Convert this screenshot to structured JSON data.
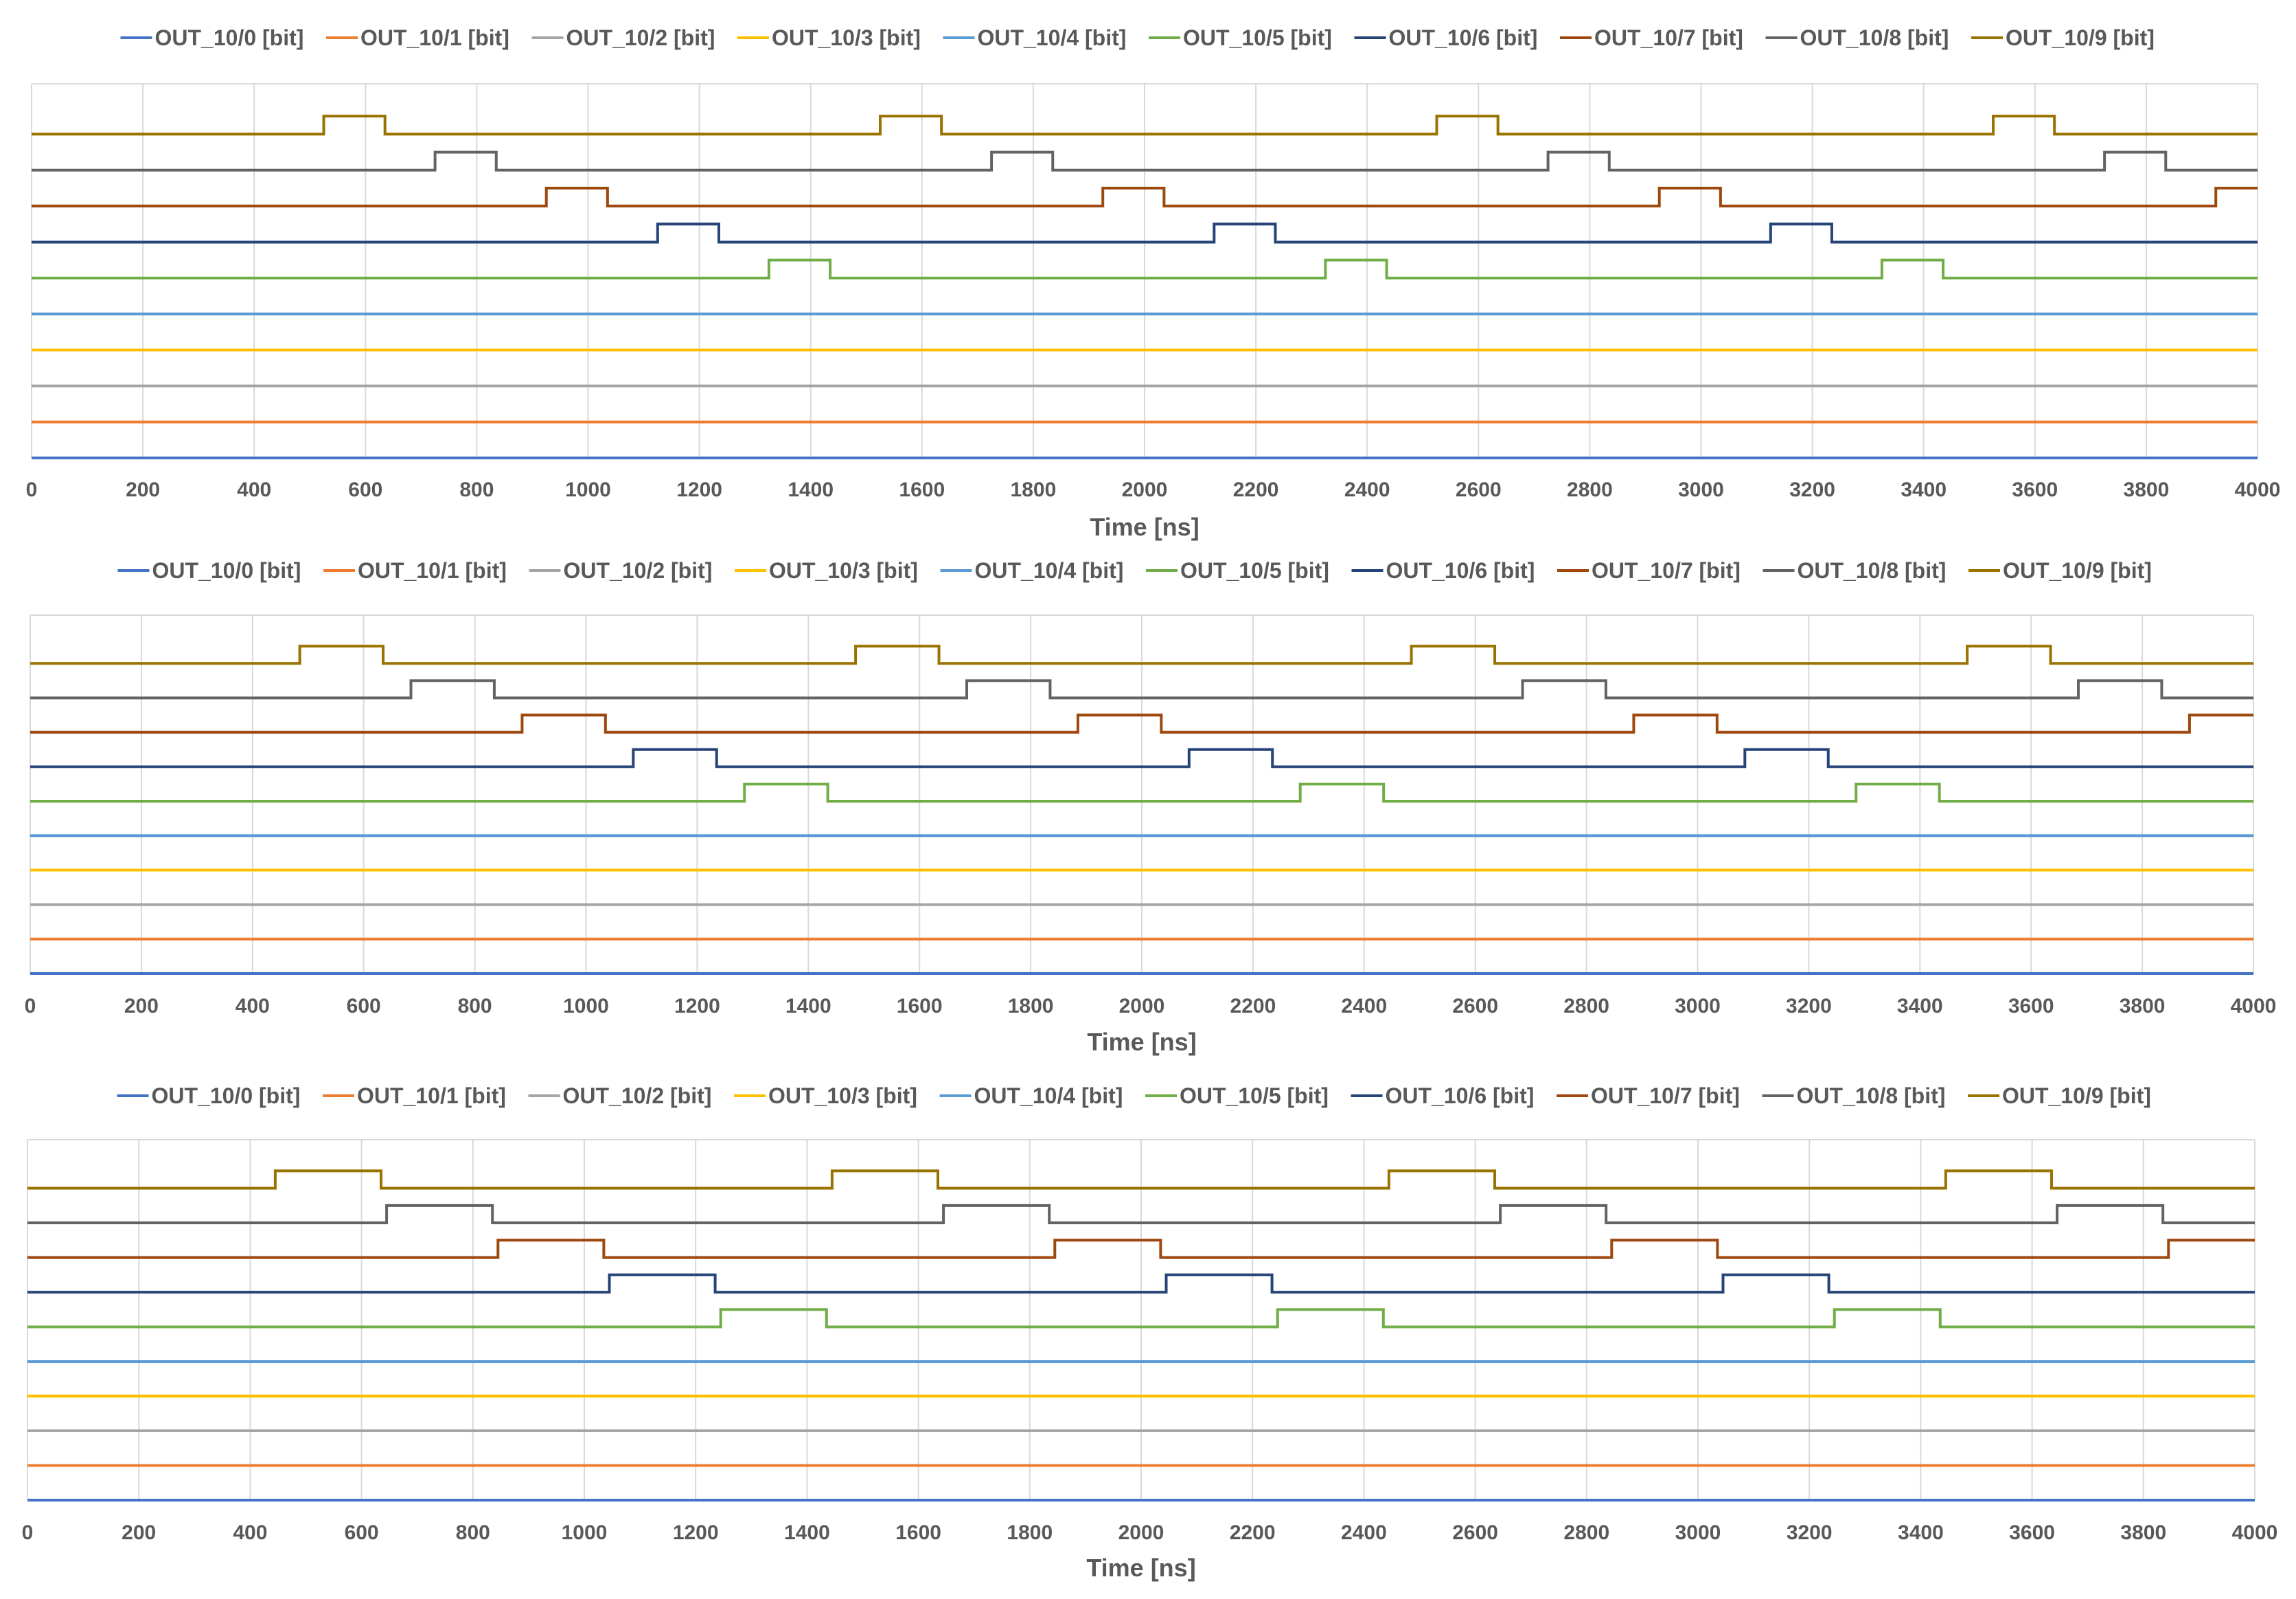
{
  "chart_data": [
    {
      "type": "line",
      "xlabel": "Time [ns]",
      "xlim": [
        0,
        4000
      ],
      "x_ticks": [
        "0",
        "200",
        "400",
        "600",
        "800",
        "1000",
        "1200",
        "1400",
        "1600",
        "1800",
        "2000",
        "2200",
        "2400",
        "2600",
        "2800",
        "3000",
        "3200",
        "3400",
        "3600",
        "3800",
        "4000"
      ],
      "legend_position": "top",
      "series": [
        {
          "name": "OUT_10/0 [bit]",
          "color": "#4472C4",
          "pulses": []
        },
        {
          "name": "OUT_10/1 [bit]",
          "color": "#ED7D31",
          "pulses": []
        },
        {
          "name": "OUT_10/2 [bit]",
          "color": "#A5A5A5",
          "pulses": []
        },
        {
          "name": "OUT_10/3 [bit]",
          "color": "#FFC000",
          "pulses": []
        },
        {
          "name": "OUT_10/4 [bit]",
          "color": "#5B9BD5",
          "pulses": []
        },
        {
          "name": "OUT_10/5 [bit]",
          "color": "#70AD47",
          "pulses": [
            [
              1325,
              1435
            ],
            [
              2325,
              2435
            ],
            [
              3325,
              3435
            ]
          ]
        },
        {
          "name": "OUT_10/6 [bit]",
          "color": "#264478",
          "pulses": [
            [
              1125,
              1235
            ],
            [
              2125,
              2235
            ],
            [
              3125,
              3235
            ]
          ]
        },
        {
          "name": "OUT_10/7 [bit]",
          "color": "#9E480E",
          "pulses": [
            [
              925,
              1035
            ],
            [
              1925,
              2035
            ],
            [
              2925,
              3035
            ],
            [
              3925,
              4000
            ]
          ]
        },
        {
          "name": "OUT_10/8 [bit]",
          "color": "#636363",
          "pulses": [
            [
              725,
              835
            ],
            [
              1725,
              1835
            ],
            [
              2725,
              2835
            ],
            [
              3725,
              3835
            ]
          ]
        },
        {
          "name": "OUT_10/9 [bit]",
          "color": "#997300",
          "pulses": [
            [
              525,
              635
            ],
            [
              1525,
              1635
            ],
            [
              2525,
              2635
            ],
            [
              3525,
              3635
            ]
          ]
        }
      ]
    },
    {
      "type": "line",
      "xlabel": "Time [ns]",
      "xlim": [
        0,
        4000
      ],
      "x_ticks": [
        "0",
        "200",
        "400",
        "600",
        "800",
        "1000",
        "1200",
        "1400",
        "1600",
        "1800",
        "2000",
        "2200",
        "2400",
        "2600",
        "2800",
        "3000",
        "3200",
        "3400",
        "3600",
        "3800",
        "4000"
      ],
      "legend_position": "top",
      "series": [
        {
          "name": "OUT_10/0 [bit]",
          "color": "#4472C4",
          "pulses": []
        },
        {
          "name": "OUT_10/1 [bit]",
          "color": "#ED7D31",
          "pulses": []
        },
        {
          "name": "OUT_10/2 [bit]",
          "color": "#A5A5A5",
          "pulses": []
        },
        {
          "name": "OUT_10/3 [bit]",
          "color": "#FFC000",
          "pulses": []
        },
        {
          "name": "OUT_10/4 [bit]",
          "color": "#5B9BD5",
          "pulses": []
        },
        {
          "name": "OUT_10/5 [bit]",
          "color": "#70AD47",
          "pulses": [
            [
              1285,
              1435
            ],
            [
              2285,
              2435
            ],
            [
              3285,
              3435
            ]
          ]
        },
        {
          "name": "OUT_10/6 [bit]",
          "color": "#264478",
          "pulses": [
            [
              1085,
              1235
            ],
            [
              2085,
              2235
            ],
            [
              3085,
              3235
            ]
          ]
        },
        {
          "name": "OUT_10/7 [bit]",
          "color": "#9E480E",
          "pulses": [
            [
              885,
              1035
            ],
            [
              1885,
              2035
            ],
            [
              2885,
              3035
            ],
            [
              3885,
              4000
            ]
          ]
        },
        {
          "name": "OUT_10/8 [bit]",
          "color": "#636363",
          "pulses": [
            [
              685,
              835
            ],
            [
              1685,
              1835
            ],
            [
              2685,
              2835
            ],
            [
              3685,
              3835
            ]
          ]
        },
        {
          "name": "OUT_10/9 [bit]",
          "color": "#997300",
          "pulses": [
            [
              485,
              635
            ],
            [
              1485,
              1635
            ],
            [
              2485,
              2635
            ],
            [
              3485,
              3635
            ]
          ]
        }
      ]
    },
    {
      "type": "line",
      "xlabel": "Time [ns]",
      "xlim": [
        0,
        4000
      ],
      "x_ticks": [
        "0",
        "200",
        "400",
        "600",
        "800",
        "1000",
        "1200",
        "1400",
        "1600",
        "1800",
        "2000",
        "2200",
        "2400",
        "2600",
        "2800",
        "3000",
        "3200",
        "3400",
        "3600",
        "3800",
        "4000"
      ],
      "legend_position": "top",
      "series": [
        {
          "name": "OUT_10/0 [bit]",
          "color": "#4472C4",
          "pulses": []
        },
        {
          "name": "OUT_10/1 [bit]",
          "color": "#ED7D31",
          "pulses": []
        },
        {
          "name": "OUT_10/2 [bit]",
          "color": "#A5A5A5",
          "pulses": []
        },
        {
          "name": "OUT_10/3 [bit]",
          "color": "#FFC000",
          "pulses": []
        },
        {
          "name": "OUT_10/4 [bit]",
          "color": "#5B9BD5",
          "pulses": []
        },
        {
          "name": "OUT_10/5 [bit]",
          "color": "#70AD47",
          "pulses": [
            [
              1245,
              1435
            ],
            [
              2245,
              2435
            ],
            [
              3245,
              3435
            ]
          ]
        },
        {
          "name": "OUT_10/6 [bit]",
          "color": "#264478",
          "pulses": [
            [
              1045,
              1235
            ],
            [
              2045,
              2235
            ],
            [
              3045,
              3235
            ]
          ]
        },
        {
          "name": "OUT_10/7 [bit]",
          "color": "#9E480E",
          "pulses": [
            [
              845,
              1035
            ],
            [
              1845,
              2035
            ],
            [
              2845,
              3035
            ],
            [
              3845,
              4000
            ]
          ]
        },
        {
          "name": "OUT_10/8 [bit]",
          "color": "#636363",
          "pulses": [
            [
              645,
              835
            ],
            [
              1645,
              1835
            ],
            [
              2645,
              2835
            ],
            [
              3645,
              3835
            ]
          ]
        },
        {
          "name": "OUT_10/9 [bit]",
          "color": "#997300",
          "pulses": [
            [
              445,
              635
            ],
            [
              1445,
              1635
            ],
            [
              2445,
              2635
            ],
            [
              3445,
              3635
            ]
          ]
        }
      ]
    }
  ]
}
